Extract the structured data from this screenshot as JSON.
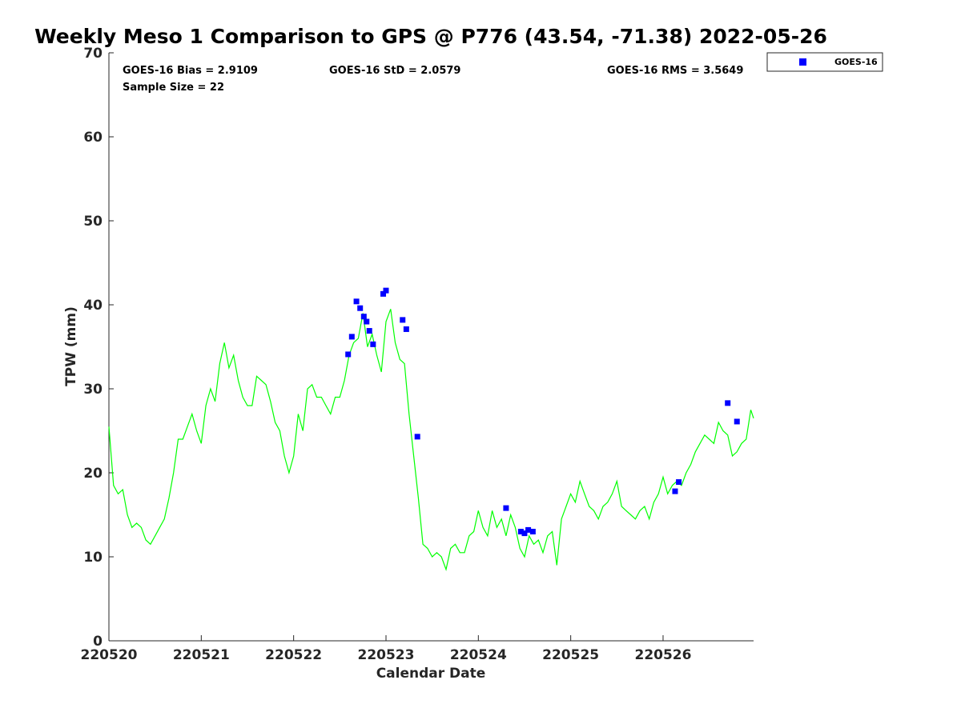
{
  "chart_data": {
    "type": "scatter",
    "title": "Weekly Meso 1 Comparison to GPS @ P776 (43.54, -71.38) 2022-05-26",
    "xlabel": "Calendar Date",
    "ylabel": "TPW (mm)",
    "xlim": [
      0,
      6.98
    ],
    "ylim": [
      0,
      70
    ],
    "x_ticks": [
      {
        "label": "220520",
        "value": 0
      },
      {
        "label": "220521",
        "value": 1
      },
      {
        "label": "220522",
        "value": 2
      },
      {
        "label": "220523",
        "value": 3
      },
      {
        "label": "220524",
        "value": 4
      },
      {
        "label": "220525",
        "value": 5
      },
      {
        "label": "220526",
        "value": 6
      }
    ],
    "y_ticks": [
      {
        "label": "0",
        "value": 0
      },
      {
        "label": "10",
        "value": 10
      },
      {
        "label": "20",
        "value": 20
      },
      {
        "label": "30",
        "value": 30
      },
      {
        "label": "40",
        "value": 40
      },
      {
        "label": "50",
        "value": 50
      },
      {
        "label": "60",
        "value": 60
      },
      {
        "label": "70",
        "value": 70
      }
    ],
    "grid": false,
    "legend_position": "top-right, outside plot",
    "stats": {
      "bias": "GOES-16 Bias = 2.9109",
      "std": "GOES-16 StD = 2.0579",
      "rms": "GOES-16 RMS = 3.5649",
      "sample": "Sample Size = 22"
    },
    "series": [
      {
        "name": "GOES-16",
        "kind": "scatter",
        "marker": "square",
        "color": "#0000ff",
        "x": [
          2.59,
          2.63,
          2.68,
          2.72,
          2.76,
          2.79,
          2.82,
          2.86,
          2.97,
          3.0,
          3.18,
          3.22,
          3.34,
          4.3,
          4.46,
          4.5,
          4.54,
          4.59,
          6.13,
          6.17,
          6.7,
          6.8
        ],
        "y": [
          34.1,
          36.2,
          40.4,
          39.6,
          38.6,
          38.0,
          36.9,
          35.3,
          41.3,
          41.7,
          38.2,
          37.1,
          24.3,
          15.8,
          13.0,
          12.8,
          13.2,
          13.0,
          17.8,
          18.9,
          28.3,
          26.1
        ]
      },
      {
        "kind": "line",
        "color": "#00ff00",
        "x": [
          0.0,
          0.05,
          0.1,
          0.15,
          0.2,
          0.25,
          0.3,
          0.35,
          0.4,
          0.45,
          0.5,
          0.55,
          0.6,
          0.65,
          0.7,
          0.75,
          0.8,
          0.85,
          0.9,
          0.95,
          1.0,
          1.05,
          1.1,
          1.15,
          1.2,
          1.25,
          1.3,
          1.35,
          1.4,
          1.45,
          1.5,
          1.55,
          1.6,
          1.65,
          1.7,
          1.75,
          1.8,
          1.85,
          1.9,
          1.95,
          2.0,
          2.05,
          2.1,
          2.15,
          2.2,
          2.25,
          2.3,
          2.35,
          2.4,
          2.45,
          2.5,
          2.55,
          2.6,
          2.65,
          2.7,
          2.75,
          2.8,
          2.85,
          2.9,
          2.95,
          3.0,
          3.05,
          3.1,
          3.15,
          3.2,
          3.25,
          3.3,
          3.35,
          3.4,
          3.45,
          3.5,
          3.55,
          3.6,
          3.65,
          3.7,
          3.75,
          3.8,
          3.85,
          3.9,
          3.95,
          4.0,
          4.05,
          4.1,
          4.15,
          4.2,
          4.25,
          4.3,
          4.35,
          4.4,
          4.45,
          4.5,
          4.55,
          4.6,
          4.65,
          4.7,
          4.75,
          4.8,
          4.85,
          4.9,
          4.95,
          5.0,
          5.05,
          5.1,
          5.15,
          5.2,
          5.25,
          5.3,
          5.35,
          5.4,
          5.45,
          5.5,
          5.55,
          5.6,
          5.65,
          5.7,
          5.75,
          5.8,
          5.85,
          5.9,
          5.95,
          6.0,
          6.05,
          6.1,
          6.15,
          6.2,
          6.25,
          6.3,
          6.35,
          6.4,
          6.45,
          6.5,
          6.55,
          6.6,
          6.65,
          6.7,
          6.75,
          6.8,
          6.85,
          6.9,
          6.95,
          6.98
        ],
        "y": [
          25.5,
          18.5,
          17.5,
          18.0,
          15.0,
          13.5,
          14.0,
          13.5,
          12.0,
          11.5,
          12.5,
          13.5,
          14.5,
          17.0,
          20.0,
          24.0,
          24.0,
          25.5,
          27.0,
          25.0,
          23.5,
          28.0,
          30.0,
          28.5,
          33.0,
          35.5,
          32.5,
          34.0,
          31.0,
          29.0,
          28.0,
          28.0,
          31.5,
          31.0,
          30.5,
          28.5,
          26.0,
          25.0,
          22.0,
          20.0,
          22.0,
          27.0,
          25.0,
          30.0,
          30.5,
          29.0,
          29.0,
          28.0,
          27.0,
          29.0,
          29.0,
          31.0,
          34.0,
          35.5,
          36.0,
          39.0,
          35.0,
          36.5,
          34.0,
          32.0,
          38.0,
          39.5,
          35.5,
          33.5,
          33.0,
          27.0,
          22.0,
          17.0,
          11.5,
          11.0,
          10.0,
          10.5,
          10.0,
          8.5,
          11.0,
          11.5,
          10.5,
          10.5,
          12.5,
          13.0,
          15.5,
          13.5,
          12.5,
          15.5,
          13.5,
          14.5,
          12.5,
          15.0,
          13.5,
          11.0,
          10.0,
          12.5,
          11.5,
          12.0,
          10.5,
          12.5,
          13.0,
          9.0,
          14.5,
          16.0,
          17.5,
          16.5,
          19.0,
          17.5,
          16.0,
          15.5,
          14.5,
          16.0,
          16.5,
          17.5,
          19.0,
          16.0,
          15.5,
          15.0,
          14.5,
          15.5,
          16.0,
          14.5,
          16.5,
          17.5,
          19.5,
          17.5,
          18.5,
          19.0,
          18.5,
          20.0,
          21.0,
          22.5,
          23.5,
          24.5,
          24.0,
          23.5,
          26.0,
          25.0,
          24.5,
          22.0,
          22.5,
          23.5,
          24.0,
          27.5,
          26.5
        ]
      }
    ]
  }
}
